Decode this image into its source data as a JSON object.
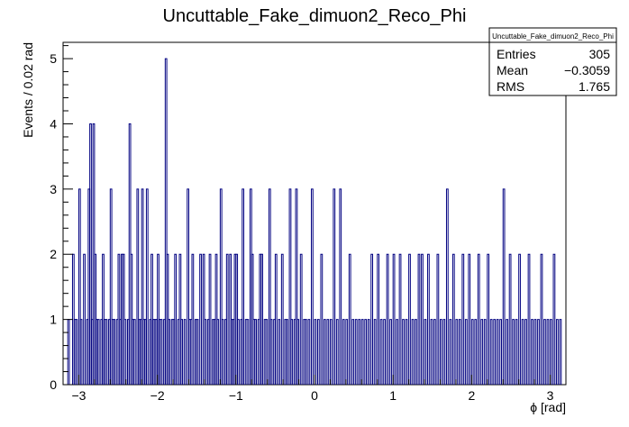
{
  "chart_data": {
    "type": "bar",
    "title": "Uncuttable_Fake_dimuon2_Reco_Phi",
    "xlabel": "ϕ [rad]",
    "ylabel": "Events / 0.02 rad",
    "xlim": [
      -3.2,
      3.2
    ],
    "ylim": [
      0,
      5.25
    ],
    "x_ticks": [
      "−3",
      "−2",
      "−1",
      "0",
      "1",
      "2",
      "3"
    ],
    "y_ticks": [
      "0",
      "1",
      "2",
      "3",
      "4",
      "5"
    ],
    "bin_width": 0.02,
    "series": [
      {
        "line_color": "#000080",
        "x": [
          -3.13,
          -3.07,
          -3.05,
          -3.03,
          -2.99,
          -2.97,
          -2.93,
          -2.89,
          -2.87,
          -2.85,
          -2.83,
          -2.81,
          -2.79,
          -2.77,
          -2.75,
          -2.71,
          -2.69,
          -2.67,
          -2.65,
          -2.61,
          -2.59,
          -2.57,
          -2.55,
          -2.51,
          -2.49,
          -2.47,
          -2.45,
          -2.43,
          -2.41,
          -2.37,
          -2.35,
          -2.33,
          -2.31,
          -2.29,
          -2.25,
          -2.23,
          -2.21,
          -2.19,
          -2.17,
          -2.15,
          -2.13,
          -2.09,
          -2.07,
          -2.05,
          -2.03,
          -2.01,
          -1.99,
          -1.97,
          -1.95,
          -1.91,
          -1.89,
          -1.87,
          -1.85,
          -1.81,
          -1.79,
          -1.77,
          -1.73,
          -1.71,
          -1.69,
          -1.65,
          -1.61,
          -1.59,
          -1.57,
          -1.55,
          -1.51,
          -1.49,
          -1.45,
          -1.41,
          -1.39,
          -1.35,
          -1.33,
          -1.29,
          -1.27,
          -1.25,
          -1.23,
          -1.19,
          -1.17,
          -1.13,
          -1.11,
          -1.07,
          -1.05,
          -1.03,
          -1.01,
          -0.99,
          -0.97,
          -0.93,
          -0.91,
          -0.87,
          -0.85,
          -0.81,
          -0.79,
          -0.77,
          -0.75,
          -0.71,
          -0.69,
          -0.67,
          -0.63,
          -0.61,
          -0.57,
          -0.55,
          -0.51,
          -0.49,
          -0.45,
          -0.41,
          -0.37,
          -0.35,
          -0.31,
          -0.29,
          -0.25,
          -0.23,
          -0.21,
          -0.17,
          -0.13,
          -0.11,
          -0.07,
          -0.03,
          0.01,
          0.05,
          0.09,
          0.13,
          0.17,
          0.21,
          0.25,
          0.29,
          0.33,
          0.37,
          0.41,
          0.45,
          0.49,
          0.53,
          0.57,
          0.61,
          0.65,
          0.69,
          0.73,
          0.77,
          0.81,
          0.85,
          0.89,
          0.93,
          0.97,
          1.01,
          1.05,
          1.09,
          1.13,
          1.17,
          1.21,
          1.25,
          1.29,
          1.33,
          1.37,
          1.41,
          1.45,
          1.49,
          1.53,
          1.57,
          1.61,
          1.65,
          1.69,
          1.73,
          1.77,
          1.81,
          1.85,
          1.89,
          1.93,
          1.97,
          2.01,
          2.05,
          2.09,
          2.13,
          2.17,
          2.21,
          2.25,
          2.29,
          2.33,
          2.37,
          2.41,
          2.45,
          2.49,
          2.53,
          2.57,
          2.61,
          2.65,
          2.69,
          2.73,
          2.77,
          2.81,
          2.85,
          2.89,
          2.93,
          2.97,
          3.01,
          3.05,
          3.09,
          3.13
        ],
        "values": [
          1,
          2,
          1,
          1,
          3,
          1,
          2,
          1,
          3,
          4,
          1,
          4,
          2,
          1,
          1,
          1,
          2,
          1,
          1,
          1,
          3,
          1,
          1,
          1,
          2,
          1,
          2,
          2,
          1,
          1,
          4,
          2,
          1,
          1,
          3,
          1,
          1,
          3,
          1,
          1,
          3,
          1,
          2,
          1,
          1,
          1,
          2,
          1,
          1,
          1,
          5,
          2,
          1,
          1,
          1,
          2,
          1,
          2,
          1,
          1,
          3,
          1,
          1,
          2,
          1,
          1,
          2,
          2,
          1,
          1,
          2,
          1,
          1,
          2,
          1,
          3,
          1,
          1,
          2,
          2,
          1,
          1,
          2,
          2,
          1,
          1,
          3,
          1,
          1,
          3,
          2,
          1,
          1,
          1,
          2,
          2,
          1,
          1,
          3,
          1,
          1,
          2,
          1,
          2,
          1,
          1,
          3,
          1,
          1,
          3,
          1,
          2,
          1,
          1,
          1,
          3,
          1,
          1,
          2,
          1,
          1,
          1,
          3,
          1,
          3,
          1,
          1,
          2,
          1,
          1,
          1,
          1,
          1,
          1,
          2,
          1,
          2,
          1,
          1,
          2,
          1,
          2,
          1,
          2,
          1,
          1,
          2,
          1,
          1,
          2,
          2,
          1,
          2,
          1,
          1,
          2,
          1,
          1,
          3,
          1,
          2,
          1,
          1,
          2,
          1,
          2,
          1,
          1,
          2,
          1,
          1,
          2,
          1,
          1,
          1,
          1,
          3,
          1,
          2,
          1,
          1,
          2,
          1,
          1,
          2,
          1,
          1,
          1,
          2,
          1,
          1,
          1,
          2,
          1,
          1
        ]
      }
    ],
    "legend": "top-right",
    "grid": false
  },
  "stats_box": {
    "name": "Uncuttable_Fake_dimuon2_Reco_Phi",
    "rows": [
      {
        "label": "Entries",
        "value": "305"
      },
      {
        "label": "Mean",
        "value": "−0.3059"
      },
      {
        "label": "RMS",
        "value": "1.765"
      }
    ]
  }
}
